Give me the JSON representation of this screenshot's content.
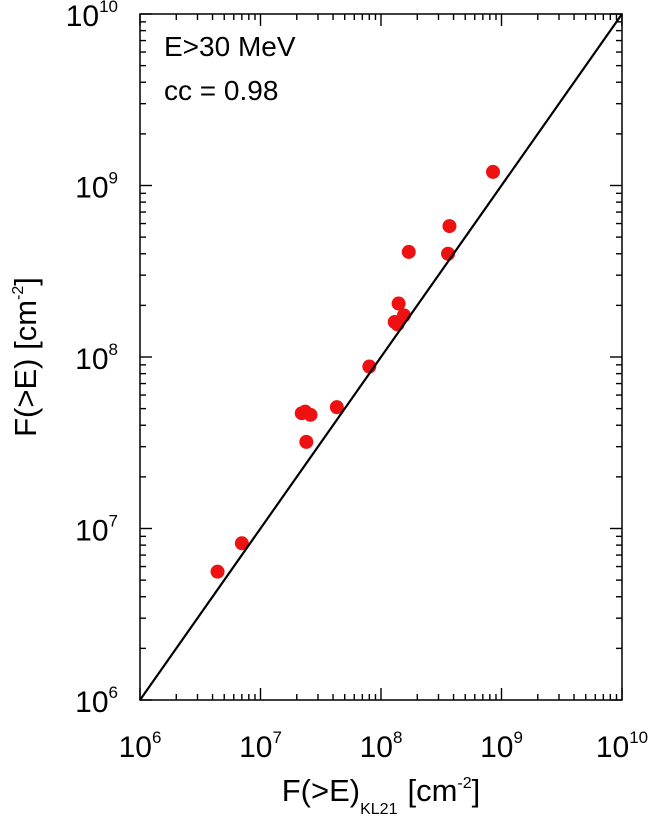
{
  "chart_data": {
    "type": "scatter",
    "annotation_lines": [
      "E>30 MeV",
      "cc = 0.98"
    ],
    "xlabel": {
      "base": "F(>E)",
      "subscript": "KL21",
      "unit_prefix": "[cm",
      "unit_exp": "-2",
      "unit_suffix": "]"
    },
    "ylabel": {
      "base": "F(>E) [cm",
      "exp": "-2",
      "suffix": "]"
    },
    "x_scale": "log",
    "y_scale": "log",
    "xlim": [
      1000000,
      10000000000
    ],
    "ylim": [
      1000000,
      10000000000
    ],
    "x_ticks": [
      {
        "base": "10",
        "exp": "6",
        "value": 1000000
      },
      {
        "base": "10",
        "exp": "7",
        "value": 10000000
      },
      {
        "base": "10",
        "exp": "8",
        "value": 100000000
      },
      {
        "base": "10",
        "exp": "9",
        "value": 1000000000
      },
      {
        "base": "10",
        "exp": "10",
        "value": 10000000000
      }
    ],
    "y_ticks": [
      {
        "base": "10",
        "exp": "6",
        "value": 1000000
      },
      {
        "base": "10",
        "exp": "7",
        "value": 10000000
      },
      {
        "base": "10",
        "exp": "8",
        "value": 100000000
      },
      {
        "base": "10",
        "exp": "9",
        "value": 1000000000
      },
      {
        "base": "10",
        "exp": "10",
        "value": 10000000000
      }
    ],
    "reference_line": {
      "type": "y=x",
      "color": "#000000"
    },
    "point_color": "#ee1111",
    "grid": false,
    "legend": "none",
    "points": [
      {
        "x": 4400000,
        "y": 5600000
      },
      {
        "x": 7000000,
        "y": 8200000
      },
      {
        "x": 22000000,
        "y": 47000000
      },
      {
        "x": 23500000,
        "y": 48000000
      },
      {
        "x": 26000000,
        "y": 46000000
      },
      {
        "x": 24000000,
        "y": 32000000
      },
      {
        "x": 43000000,
        "y": 51000000
      },
      {
        "x": 80000000,
        "y": 88000000
      },
      {
        "x": 130000000,
        "y": 160000000
      },
      {
        "x": 137000000,
        "y": 155000000
      },
      {
        "x": 140000000,
        "y": 205000000
      },
      {
        "x": 155000000,
        "y": 175000000
      },
      {
        "x": 170000000,
        "y": 410000000
      },
      {
        "x": 360000000,
        "y": 400000000
      },
      {
        "x": 370000000,
        "y": 580000000
      },
      {
        "x": 850000000,
        "y": 1200000000
      }
    ]
  }
}
